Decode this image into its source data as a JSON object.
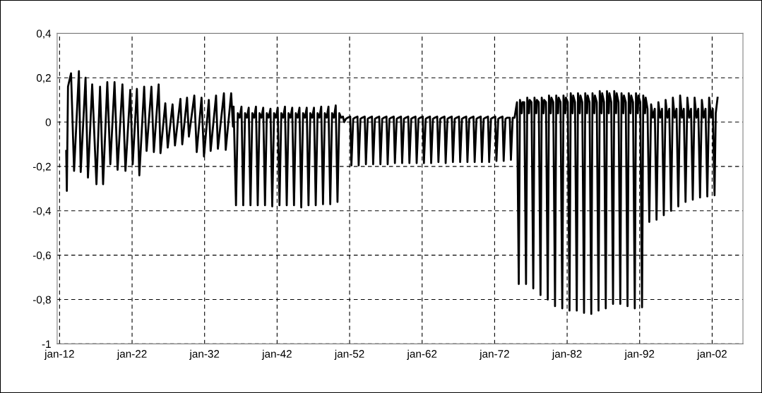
{
  "chart_data": {
    "type": "line",
    "xlim": [
      "1911-09",
      "2006-04"
    ],
    "xticks": [
      {
        "value": "1912-01",
        "label": "jan-12"
      },
      {
        "value": "1922-01",
        "label": "jan-22"
      },
      {
        "value": "1932-01",
        "label": "jan-32"
      },
      {
        "value": "1942-01",
        "label": "jan-42"
      },
      {
        "value": "1952-01",
        "label": "jan-52"
      },
      {
        "value": "1962-01",
        "label": "jan-62"
      },
      {
        "value": "1972-01",
        "label": "jan-72"
      },
      {
        "value": "1982-01",
        "label": "jan-82"
      },
      {
        "value": "1992-01",
        "label": "jan-92"
      },
      {
        "value": "2002-01",
        "label": "jan-02"
      }
    ],
    "ylim": [
      -1,
      0.4
    ],
    "yticks": [
      {
        "value": 0.4,
        "label": "0,4"
      },
      {
        "value": 0.2,
        "label": "0,2"
      },
      0,
      {
        "value": -0.2,
        "label": "-0,2"
      },
      {
        "value": -0.4,
        "label": "-0,4"
      },
      {
        "value": -0.6,
        "label": "-0,6"
      },
      {
        "value": -0.8,
        "label": "-0,8"
      },
      -1
    ],
    "grid": true,
    "line_style": "solid",
    "marker": "none",
    "series": [
      {
        "color": "#000000",
        "x": [
          "1912-12",
          "1913-01",
          "1913-03",
          "1913-08",
          "1914-01",
          "1914-09",
          "1914-12",
          "1915-08",
          "1915-12",
          "1916-07",
          "1917-02",
          "1917-08",
          "1918-01",
          "1918-08",
          "1919-01",
          "1919-08",
          "1920-01",
          "1920-09",
          "1921-02",
          "1921-10",
          "1922-02",
          "1922-09",
          "1923-01",
          "1923-09",
          "1924-01",
          "1924-09",
          "1925-01",
          "1925-09",
          "1925-12",
          "1926-08",
          "1926-12",
          "1927-08",
          "1927-12",
          "1928-09",
          "1928-12",
          "1929-08",
          "1929-11",
          "1930-08",
          "1930-12",
          "1931-08",
          "1931-12",
          "1932-08",
          "1932-11",
          "1933-08",
          "1933-11",
          "1934-09",
          "1934-12",
          "1935-09",
          "1935-12",
          "1936-01",
          "1936-05",
          "1936-08",
          "1936-11",
          "1937-02",
          "1937-05",
          "1937-08",
          "1937-11",
          "1938-02",
          "1938-05",
          "1938-08",
          "1938-11",
          "1939-02",
          "1939-05",
          "1939-08",
          "1939-11",
          "1940-02",
          "1940-05",
          "1940-08",
          "1940-11",
          "1941-02",
          "1941-05",
          "1941-08",
          "1941-11",
          "1942-02",
          "1942-05",
          "1942-08",
          "1942-11",
          "1943-02",
          "1943-05",
          "1943-08",
          "1943-11",
          "1944-02",
          "1944-05",
          "1944-08",
          "1944-11",
          "1945-02",
          "1945-05",
          "1945-08",
          "1945-11",
          "1946-02",
          "1946-05",
          "1946-08",
          "1946-11",
          "1947-02",
          "1947-05",
          "1947-08",
          "1947-11",
          "1948-02",
          "1948-05",
          "1948-08",
          "1948-11",
          "1949-02",
          "1949-05",
          "1949-08",
          "1949-11",
          "1950-02",
          "1950-05",
          "1950-08",
          "1950-11",
          "1951-02",
          "1951-04",
          "1951-07",
          "1951-10",
          "1952-02",
          "1952-04",
          "1952-07",
          "1952-10",
          "1953-02",
          "1953-04",
          "1953-07",
          "1953-10",
          "1954-02",
          "1954-04",
          "1954-07",
          "1954-10",
          "1955-02",
          "1955-04",
          "1955-07",
          "1955-10",
          "1956-02",
          "1956-04",
          "1956-07",
          "1956-10",
          "1957-02",
          "1957-04",
          "1957-07",
          "1957-10",
          "1958-02",
          "1958-04",
          "1958-07",
          "1958-10",
          "1959-02",
          "1959-04",
          "1959-07",
          "1959-10",
          "1960-02",
          "1960-04",
          "1960-07",
          "1960-10",
          "1961-02",
          "1961-04",
          "1961-07",
          "1961-10",
          "1962-02",
          "1962-04",
          "1962-07",
          "1962-10",
          "1963-02",
          "1963-04",
          "1963-07",
          "1963-10",
          "1964-02",
          "1964-04",
          "1964-07",
          "1964-10",
          "1965-02",
          "1965-04",
          "1965-07",
          "1965-10",
          "1966-02",
          "1966-04",
          "1966-07",
          "1966-10",
          "1967-02",
          "1967-04",
          "1967-07",
          "1967-10",
          "1968-02",
          "1968-04",
          "1968-07",
          "1968-10",
          "1969-02",
          "1969-04",
          "1969-07",
          "1969-10",
          "1970-02",
          "1970-04",
          "1970-07",
          "1970-10",
          "1971-02",
          "1971-04",
          "1971-07",
          "1971-10",
          "1972-02",
          "1972-04",
          "1972-07",
          "1972-10",
          "1973-02",
          "1973-04",
          "1973-07",
          "1973-10",
          "1974-02",
          "1974-04",
          "1974-07",
          "1974-10",
          "1975-02",
          "1975-05",
          "1975-07",
          "1975-10",
          "1975-11",
          "1976-02",
          "1976-05",
          "1976-07",
          "1976-10",
          "1976-11",
          "1977-02",
          "1977-05",
          "1977-07",
          "1977-10",
          "1977-11",
          "1978-02",
          "1978-05",
          "1978-07",
          "1978-10",
          "1978-11",
          "1979-02",
          "1979-05",
          "1979-07",
          "1979-10",
          "1979-11",
          "1980-02",
          "1980-05",
          "1980-07",
          "1980-10",
          "1980-11",
          "1981-02",
          "1981-05",
          "1981-07",
          "1981-10",
          "1981-11",
          "1982-02",
          "1982-05",
          "1982-07",
          "1982-10",
          "1982-11",
          "1983-02",
          "1983-05",
          "1983-07",
          "1983-10",
          "1983-11",
          "1984-02",
          "1984-05",
          "1984-07",
          "1984-10",
          "1984-11",
          "1985-02",
          "1985-05",
          "1985-07",
          "1985-10",
          "1985-11",
          "1986-02",
          "1986-05",
          "1986-07",
          "1986-10",
          "1986-11",
          "1987-02",
          "1987-05",
          "1987-07",
          "1987-10",
          "1987-11",
          "1988-02",
          "1988-05",
          "1988-07",
          "1988-10",
          "1988-11",
          "1989-02",
          "1989-05",
          "1989-07",
          "1989-10",
          "1989-11",
          "1990-02",
          "1990-05",
          "1990-07",
          "1990-10",
          "1990-11",
          "1991-02",
          "1991-05",
          "1991-07",
          "1991-10",
          "1991-11",
          "1992-02",
          "1992-05",
          "1992-07",
          "1992-10",
          "1992-11",
          "1993-02",
          "1993-05",
          "1993-08",
          "1993-11",
          "1994-02",
          "1994-05",
          "1994-08",
          "1994-11",
          "1995-02",
          "1995-05",
          "1995-08",
          "1995-11",
          "1996-02",
          "1996-05",
          "1996-08",
          "1996-11",
          "1997-02",
          "1997-05",
          "1997-08",
          "1997-11",
          "1998-02",
          "1998-05",
          "1998-08",
          "1998-11",
          "1999-02",
          "1999-05",
          "1999-08",
          "1999-11",
          "2000-02",
          "2000-05",
          "2000-08",
          "2000-11",
          "2001-02",
          "2001-05",
          "2001-08",
          "2001-11",
          "2002-02",
          "2002-05",
          "2002-07",
          "2002-10"
        ],
        "values": [
          -0.13,
          -0.31,
          0.16,
          0.22,
          -0.22,
          0.23,
          -0.225,
          0.2,
          -0.25,
          0.17,
          -0.28,
          0.16,
          -0.28,
          0.18,
          -0.19,
          0.18,
          -0.215,
          0.17,
          -0.22,
          0.145,
          -0.19,
          0.15,
          -0.24,
          0.16,
          -0.13,
          0.16,
          -0.135,
          0.17,
          -0.14,
          0.085,
          -0.115,
          0.08,
          -0.105,
          0.105,
          -0.1,
          0.11,
          -0.065,
          0.12,
          -0.135,
          0.11,
          -0.155,
          0.1,
          -0.13,
          0.12,
          -0.12,
          0.13,
          -0.125,
          0.13,
          -0.02,
          0.07,
          -0.375,
          0.04,
          0.02,
          0.07,
          -0.375,
          0.04,
          0.02,
          0.065,
          -0.375,
          0.04,
          0.02,
          0.07,
          -0.375,
          0.04,
          0.02,
          0.065,
          -0.375,
          0.04,
          0.02,
          0.06,
          -0.38,
          0.04,
          0.02,
          0.065,
          -0.375,
          0.04,
          0.02,
          0.07,
          -0.375,
          0.04,
          0.02,
          0.065,
          -0.375,
          0.04,
          0.02,
          0.065,
          -0.385,
          0.04,
          0.02,
          0.065,
          -0.375,
          0.04,
          0.02,
          0.065,
          -0.375,
          0.04,
          0.02,
          0.07,
          -0.37,
          0.04,
          0.02,
          0.07,
          -0.37,
          0.04,
          0.02,
          0.075,
          -0.36,
          0.04,
          0.02,
          0.025,
          0.0,
          0.015,
          0.02,
          0.025,
          -0.195,
          0.015,
          0.02,
          0.025,
          -0.195,
          0.015,
          0.02,
          0.025,
          -0.19,
          0.015,
          0.02,
          0.025,
          -0.19,
          0.015,
          0.02,
          0.025,
          -0.19,
          0.015,
          0.02,
          0.025,
          -0.19,
          0.015,
          0.02,
          0.025,
          -0.185,
          0.015,
          0.02,
          0.025,
          -0.185,
          0.015,
          0.02,
          0.025,
          -0.185,
          0.015,
          0.02,
          0.025,
          -0.185,
          0.015,
          0.02,
          0.025,
          -0.185,
          0.015,
          0.02,
          0.025,
          -0.185,
          0.015,
          0.02,
          0.025,
          -0.18,
          0.015,
          0.02,
          0.025,
          -0.185,
          0.015,
          0.02,
          0.025,
          -0.18,
          0.015,
          0.02,
          0.025,
          -0.18,
          0.015,
          0.02,
          0.025,
          -0.18,
          0.015,
          0.02,
          0.025,
          -0.18,
          0.015,
          0.02,
          0.025,
          -0.18,
          0.015,
          0.02,
          0.025,
          -0.18,
          0.015,
          0.02,
          0.025,
          -0.175,
          0.015,
          0.02,
          0.025,
          -0.175,
          0.015,
          0.02,
          0.02,
          -0.17,
          0.02,
          0.02,
          0.09,
          -0.73,
          0.1,
          0.04,
          0.09,
          0.09,
          -0.73,
          0.11,
          0.04,
          0.1,
          0.09,
          -0.75,
          0.11,
          0.04,
          0.1,
          0.09,
          -0.78,
          0.11,
          0.04,
          0.1,
          0.09,
          -0.8,
          0.12,
          0.04,
          0.11,
          0.09,
          -0.83,
          0.12,
          0.04,
          0.11,
          0.09,
          -0.84,
          0.12,
          0.04,
          0.11,
          0.09,
          -0.85,
          0.13,
          0.04,
          0.12,
          0.09,
          -0.85,
          0.13,
          0.04,
          0.12,
          0.09,
          -0.86,
          0.13,
          0.04,
          0.12,
          0.09,
          -0.865,
          0.13,
          0.04,
          0.12,
          0.09,
          -0.85,
          0.14,
          0.04,
          0.13,
          0.09,
          -0.84,
          0.14,
          0.04,
          0.13,
          0.09,
          -0.82,
          0.14,
          0.04,
          0.13,
          0.09,
          -0.82,
          0.13,
          0.04,
          0.12,
          0.09,
          -0.83,
          0.13,
          0.04,
          0.12,
          0.09,
          -0.84,
          0.13,
          0.04,
          0.12,
          0.09,
          -0.835,
          0.12,
          0.04,
          0.11,
          0.06,
          -0.45,
          0.08,
          0.02,
          0.06,
          -0.44,
          0.09,
          0.02,
          0.06,
          -0.42,
          0.1,
          0.02,
          0.06,
          -0.4,
          0.11,
          0.02,
          0.06,
          -0.38,
          0.12,
          0.02,
          0.06,
          -0.36,
          0.11,
          0.02,
          0.06,
          -0.35,
          0.11,
          0.02,
          0.06,
          -0.34,
          0.1,
          0.02,
          0.06,
          -0.335,
          0.11,
          0.02,
          0.06,
          -0.33,
          0.04,
          0.11
        ]
      }
    ]
  }
}
